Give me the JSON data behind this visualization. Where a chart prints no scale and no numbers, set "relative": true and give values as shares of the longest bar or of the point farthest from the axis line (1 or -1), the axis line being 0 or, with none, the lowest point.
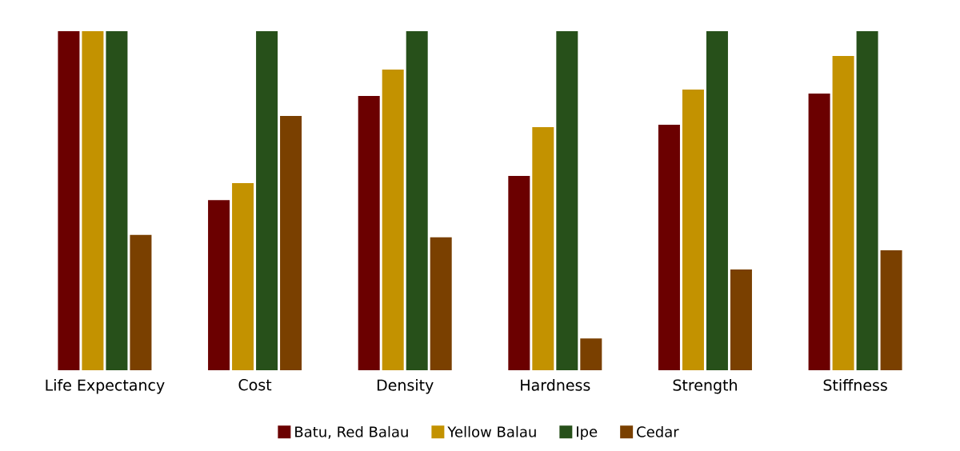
{
  "chart_data": {
    "type": "bar",
    "relative": true,
    "categories": [
      "Life Expectancy",
      "Cost",
      "Density",
      "Hardness",
      "Strength",
      "Stiffness"
    ],
    "series": [
      {
        "name": "Batu, Red Balau",
        "color": "#6b0000",
        "values": [
          1,
          0.502,
          0.809,
          0.573,
          0.724,
          0.816
        ]
      },
      {
        "name": "Yellow Balau",
        "color": "#c39200",
        "values": [
          1,
          0.552,
          0.887,
          0.717,
          0.828,
          0.927
        ]
      },
      {
        "name": "Ipe",
        "color": "#27501a",
        "values": [
          1,
          1,
          1,
          1,
          1,
          1
        ]
      },
      {
        "name": "Cedar",
        "color": "#7a4000",
        "values": [
          0.399,
          0.75,
          0.392,
          0.094,
          0.297,
          0.354
        ]
      }
    ],
    "legend": "bottom"
  }
}
